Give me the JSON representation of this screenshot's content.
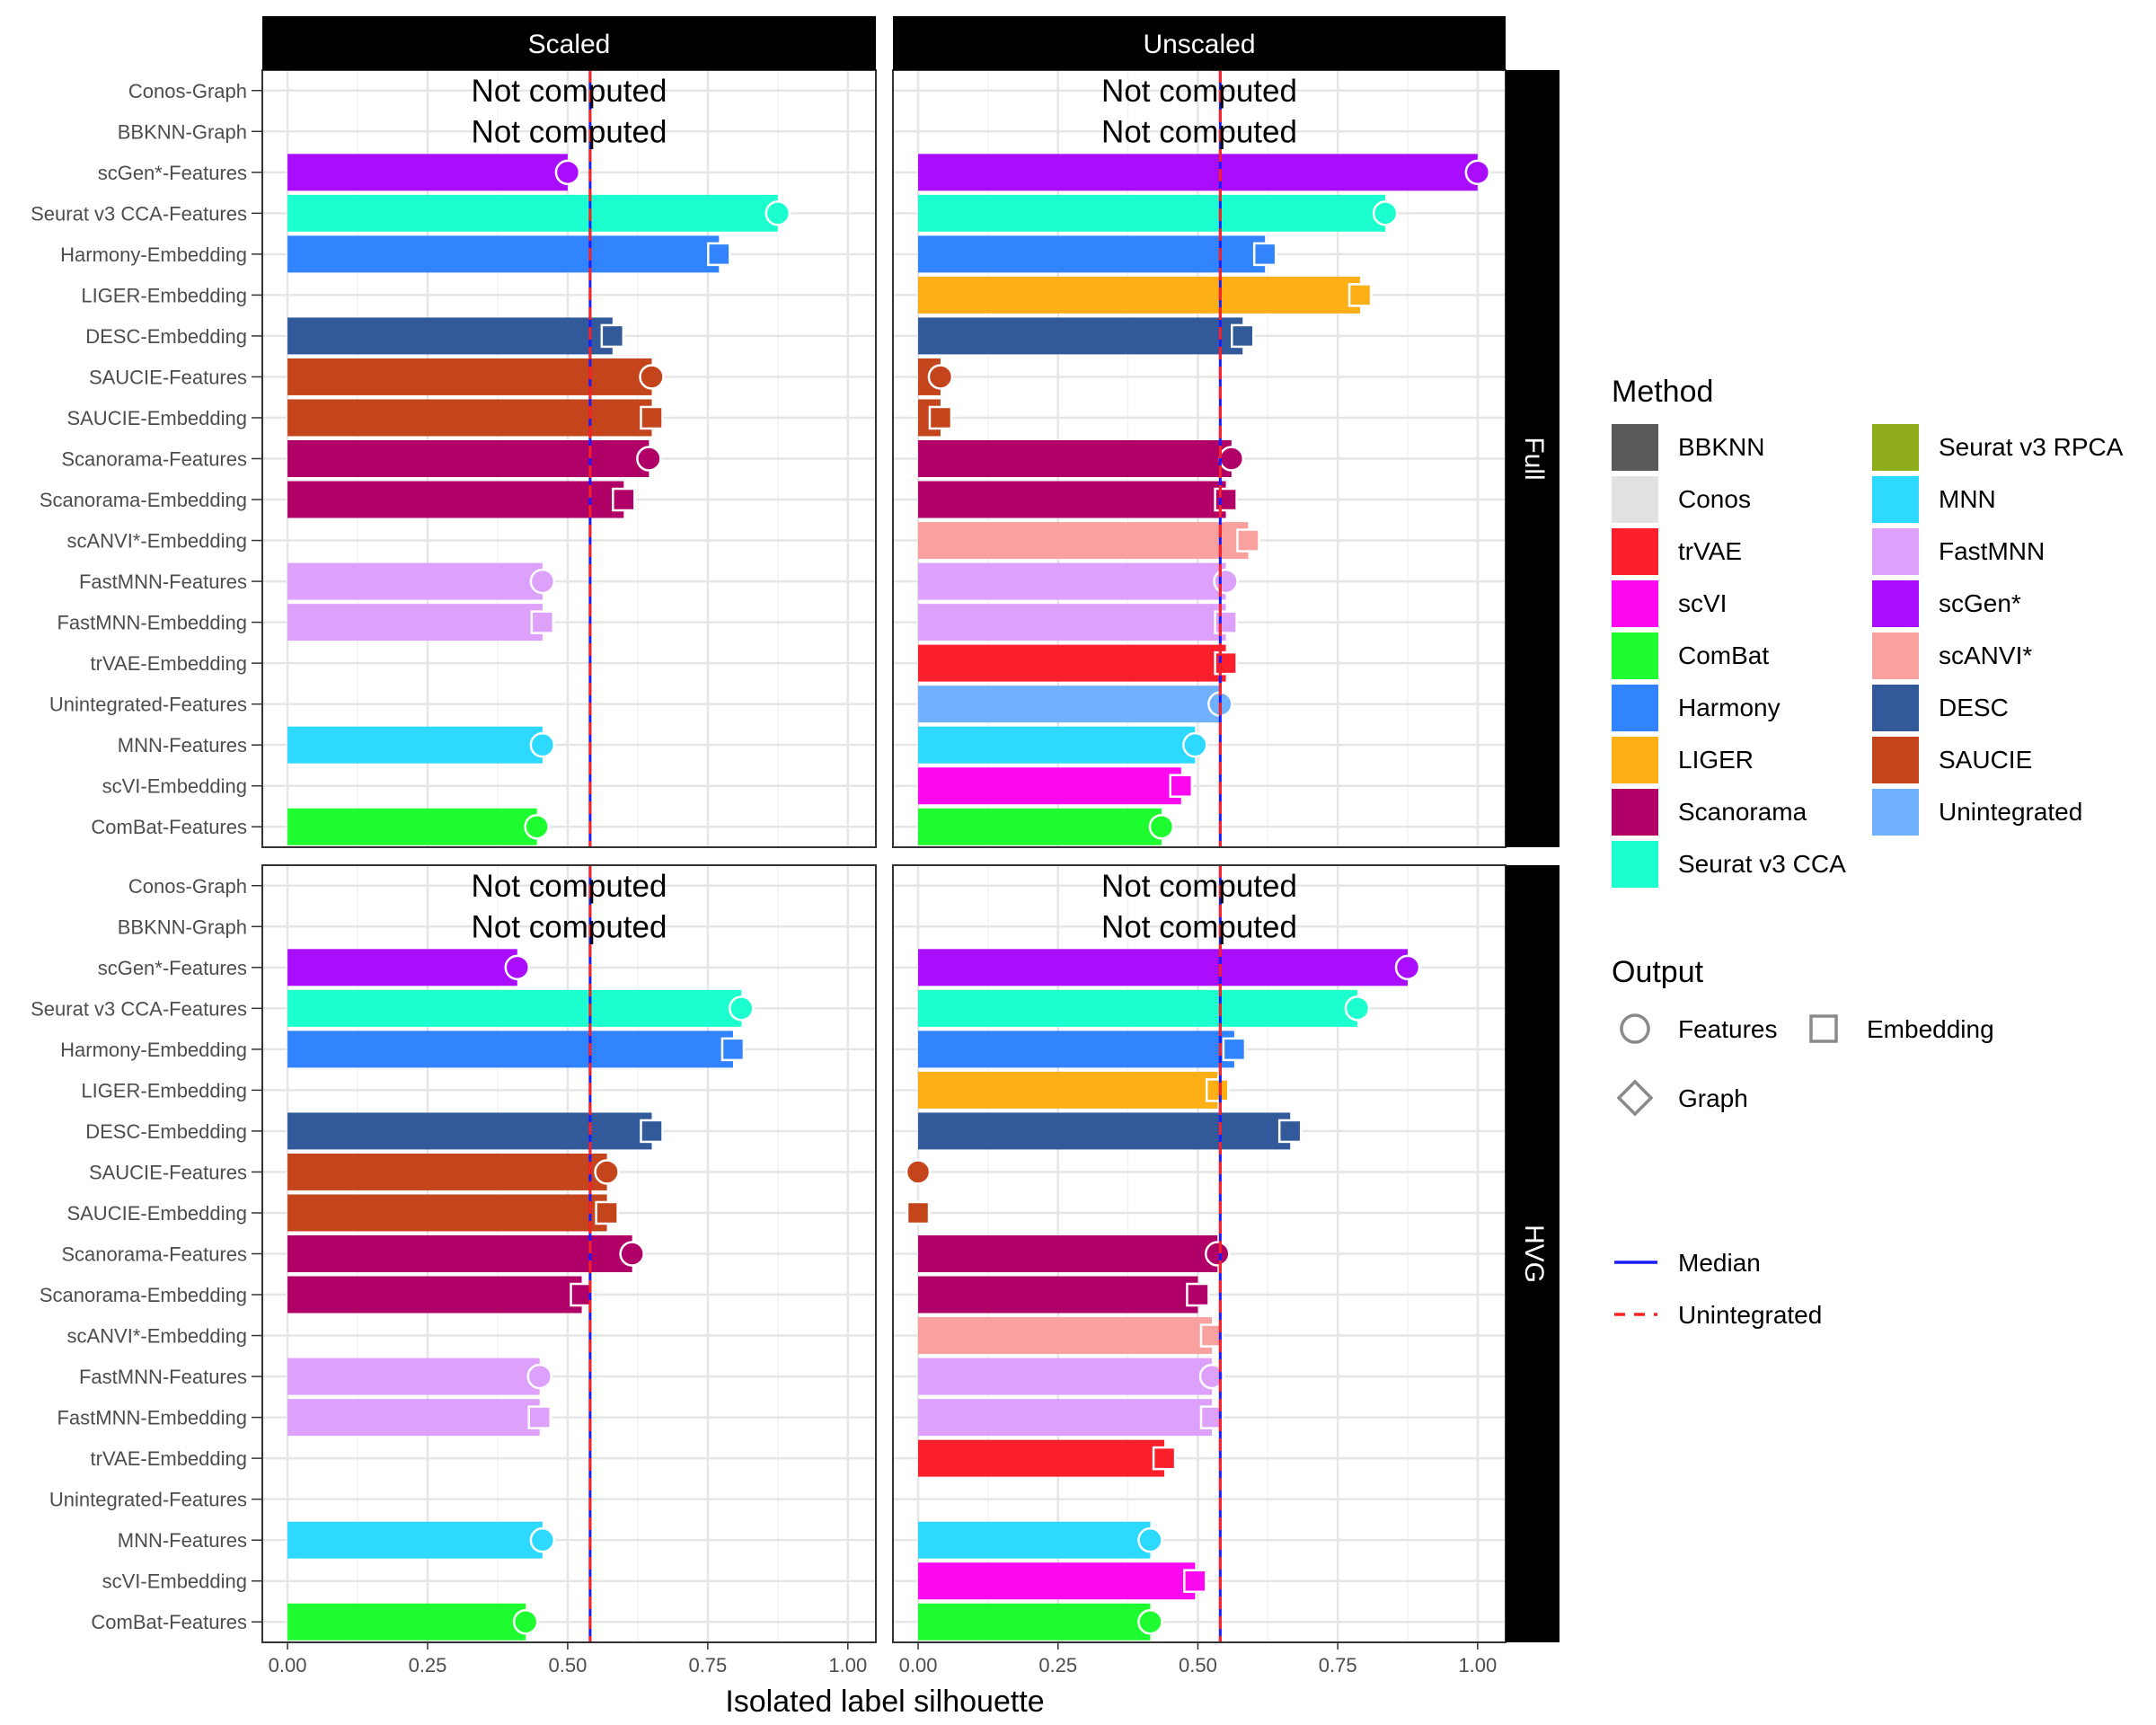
{
  "chart_data": {
    "type": "bar",
    "xlabel": "Isolated label silhouette",
    "x_ticks": [
      "0.00",
      "0.25",
      "0.50",
      "0.75",
      "1.00"
    ],
    "xlim": [
      -0.045,
      1.05
    ],
    "columns": [
      "Scaled",
      "Unscaled"
    ],
    "rows": [
      "Full",
      "HVG"
    ],
    "categories": [
      "Conos-Graph",
      "BBKNN-Graph",
      "scGen*-Features",
      "Seurat v3 CCA-Features",
      "Harmony-Embedding",
      "LIGER-Embedding",
      "DESC-Embedding",
      "SAUCIE-Features",
      "SAUCIE-Embedding",
      "Scanorama-Features",
      "Scanorama-Embedding",
      "scANVI*-Embedding",
      "FastMNN-Features",
      "FastMNN-Embedding",
      "trVAE-Embedding",
      "Unintegrated-Features",
      "MNN-Features",
      "scVI-Embedding",
      "ComBat-Features"
    ],
    "not_computed_label": "Not computed",
    "method_colors": {
      "BBKNN": "#5a5a5a",
      "Conos": "#e2e2e2",
      "trVAE": "#fb1f2b",
      "scVI": "#fc08f0",
      "ComBat": "#1efd30",
      "Harmony": "#3283fe",
      "LIGER": "#feaf16",
      "Scanorama": "#b00068",
      "Seurat v3 CCA": "#1cffce",
      "Seurat v3 RPCA": "#90ad1c",
      "MNN": "#2ed9ff",
      "FastMNN": "#dea1fb",
      "scGen*": "#aa0dfe",
      "scANVI*": "#f8a19f",
      "DESC": "#325a9b",
      "SAUCIE": "#c4451c",
      "Unintegrated": "#6fb0ff"
    },
    "panels": [
      {
        "column": "Scaled",
        "row": "Full",
        "median": 0.54,
        "unintegrated": 0.54,
        "values": [
          null,
          null,
          0.5,
          0.875,
          0.77,
          null,
          0.58,
          0.65,
          0.65,
          0.645,
          0.6,
          null,
          0.455,
          0.455,
          null,
          null,
          0.455,
          null,
          0.445
        ]
      },
      {
        "column": "Unscaled",
        "row": "Full",
        "median": 0.54,
        "unintegrated": 0.54,
        "values": [
          null,
          null,
          1.0,
          0.835,
          0.62,
          0.79,
          0.58,
          0.04,
          0.04,
          0.56,
          0.55,
          0.59,
          0.55,
          0.55,
          0.55,
          0.54,
          0.495,
          0.47,
          0.435
        ]
      },
      {
        "column": "Scaled",
        "row": "HVG",
        "median": 0.54,
        "unintegrated": 0.54,
        "values": [
          null,
          null,
          0.41,
          0.81,
          0.795,
          null,
          0.65,
          0.57,
          0.57,
          0.615,
          0.525,
          null,
          0.45,
          0.45,
          null,
          null,
          0.455,
          null,
          0.425
        ]
      },
      {
        "column": "Unscaled",
        "row": "HVG",
        "median": 0.54,
        "unintegrated": 0.54,
        "values": [
          null,
          null,
          0.875,
          0.785,
          0.565,
          0.535,
          0.665,
          0.0,
          0.0,
          0.535,
          0.5,
          0.525,
          0.525,
          0.525,
          0.44,
          null,
          0.415,
          0.495,
          0.415
        ]
      }
    ],
    "legend": {
      "method_title": "Method",
      "methods_col1": [
        "BBKNN",
        "Conos",
        "trVAE",
        "scVI",
        "ComBat",
        "Harmony",
        "LIGER",
        "Scanorama",
        "Seurat v3 CCA"
      ],
      "methods_col2": [
        "Seurat v3 RPCA",
        "MNN",
        "FastMNN",
        "scGen*",
        "scANVI*",
        "DESC",
        "SAUCIE",
        "Unintegrated"
      ],
      "output_title": "Output",
      "outputs": [
        "Features",
        "Embedding",
        "Graph"
      ],
      "lines": [
        {
          "label": "Median",
          "color": "#1a1aff",
          "dash": "solid"
        },
        {
          "label": "Unintegrated",
          "color": "#ff2020",
          "dash": "dashed"
        }
      ]
    }
  }
}
